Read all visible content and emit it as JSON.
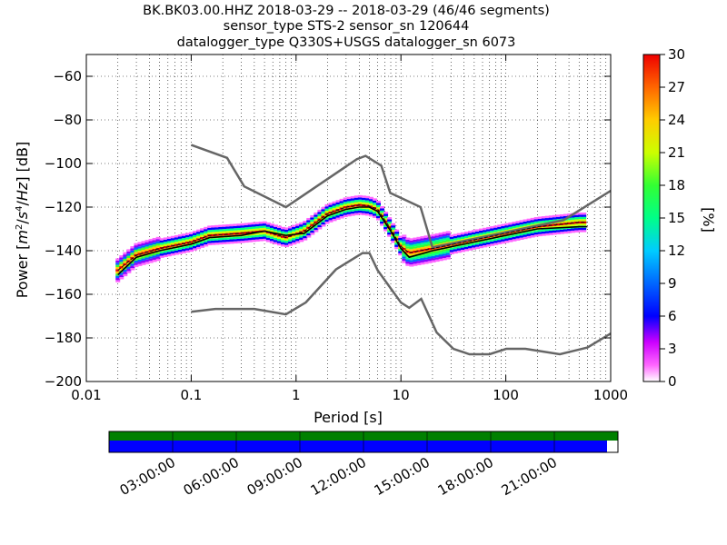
{
  "title_lines": [
    "BK.BK03.00.HHZ   2018-03-29 -- 2018-03-29  (46/46 segments)",
    "sensor_type STS-2 sensor_sn 120644",
    "datalogger_type Q330S+USGS datalogger_sn 6073"
  ],
  "colorbar": {
    "label": "[%]",
    "ticks": [
      "0",
      "3",
      "6",
      "9",
      "12",
      "15",
      "18",
      "21",
      "24",
      "27",
      "30"
    ],
    "range": [
      0,
      30
    ]
  },
  "timeline": {
    "ticks": [
      "03:00:00",
      "06:00:00",
      "09:00:00",
      "12:00:00",
      "15:00:00",
      "18:00:00",
      "21:00:00"
    ],
    "colors": {
      "upper": "#008000",
      "lower": "#0000ff"
    }
  },
  "chart_data": {
    "type": "heatmap",
    "xlabel": "Period [s]",
    "ylabel": "Power [m^2/s^4/Hz] [dB]",
    "xscale": "log",
    "xlim": [
      0.01,
      1000
    ],
    "ylim": [
      -200,
      -50
    ],
    "x_tick_labels": [
      "0.01",
      "0.1",
      "1",
      "10",
      "100",
      "1000"
    ],
    "y_tick_labels": [
      "−200",
      "−180",
      "−160",
      "−140",
      "−120",
      "−100",
      "−80",
      "−60"
    ],
    "grid": true,
    "series": [
      {
        "name": "NHNM",
        "points": [
          [
            0.1,
            -91.5
          ],
          [
            0.22,
            -97.4
          ],
          [
            0.32,
            -110.5
          ],
          [
            0.8,
            -120
          ],
          [
            3.8,
            -98
          ],
          [
            4.6,
            -96.5
          ],
          [
            6.5,
            -101
          ],
          [
            7.9,
            -113.5
          ],
          [
            15.4,
            -120
          ],
          [
            20,
            -138.5
          ],
          [
            354.8,
            -126
          ],
          [
            1000,
            -112.5
          ]
        ]
      },
      {
        "name": "NLNM",
        "points": [
          [
            0.1,
            -168
          ],
          [
            0.17,
            -166.7
          ],
          [
            0.4,
            -166.7
          ],
          [
            0.8,
            -169.2
          ],
          [
            1.24,
            -163.7
          ],
          [
            2.4,
            -148.6
          ],
          [
            4.3,
            -141.1
          ],
          [
            5,
            -141.1
          ],
          [
            6,
            -149
          ],
          [
            10,
            -163.8
          ],
          [
            12,
            -166.2
          ],
          [
            15.6,
            -162.1
          ],
          [
            21.9,
            -177.5
          ],
          [
            31.6,
            -185
          ],
          [
            45,
            -187.5
          ],
          [
            70,
            -187.5
          ],
          [
            101,
            -185
          ],
          [
            154,
            -185
          ],
          [
            328,
            -187.5
          ],
          [
            600,
            -184.4
          ],
          [
            1000,
            -178
          ]
        ]
      },
      {
        "name": "mean",
        "points": [
          [
            0.02,
            -151
          ],
          [
            0.03,
            -143
          ],
          [
            0.05,
            -140
          ],
          [
            0.1,
            -137
          ],
          [
            0.15,
            -134
          ],
          [
            0.3,
            -133
          ],
          [
            0.5,
            -131
          ],
          [
            0.8,
            -133
          ],
          [
            1.2,
            -132
          ],
          [
            2,
            -124
          ],
          [
            3,
            -121
          ],
          [
            4,
            -120
          ],
          [
            5,
            -120
          ],
          [
            6,
            -122
          ],
          [
            8,
            -131
          ],
          [
            10,
            -139
          ],
          [
            12,
            -143
          ],
          [
            20,
            -140
          ],
          [
            50,
            -136
          ],
          [
            100,
            -133
          ],
          [
            200,
            -130
          ],
          [
            500,
            -129
          ],
          [
            600,
            -129
          ]
        ]
      },
      {
        "name": "mode",
        "points": [
          [
            0.02,
            -149
          ],
          [
            0.03,
            -142
          ],
          [
            0.05,
            -139
          ],
          [
            0.1,
            -136
          ],
          [
            0.15,
            -133
          ],
          [
            0.3,
            -132
          ],
          [
            0.5,
            -131
          ],
          [
            0.8,
            -134
          ],
          [
            1.2,
            -131
          ],
          [
            2,
            -123
          ],
          [
            3,
            -120
          ],
          [
            4,
            -119
          ],
          [
            5,
            -119.5
          ],
          [
            6,
            -121
          ],
          [
            8,
            -130
          ],
          [
            10,
            -138
          ],
          [
            12,
            -141
          ],
          [
            20,
            -139
          ],
          [
            50,
            -135
          ],
          [
            100,
            -132
          ],
          [
            200,
            -129
          ],
          [
            500,
            -127
          ],
          [
            600,
            -127
          ]
        ]
      }
    ],
    "colorscale_percent": [
      0,
      30
    ]
  }
}
